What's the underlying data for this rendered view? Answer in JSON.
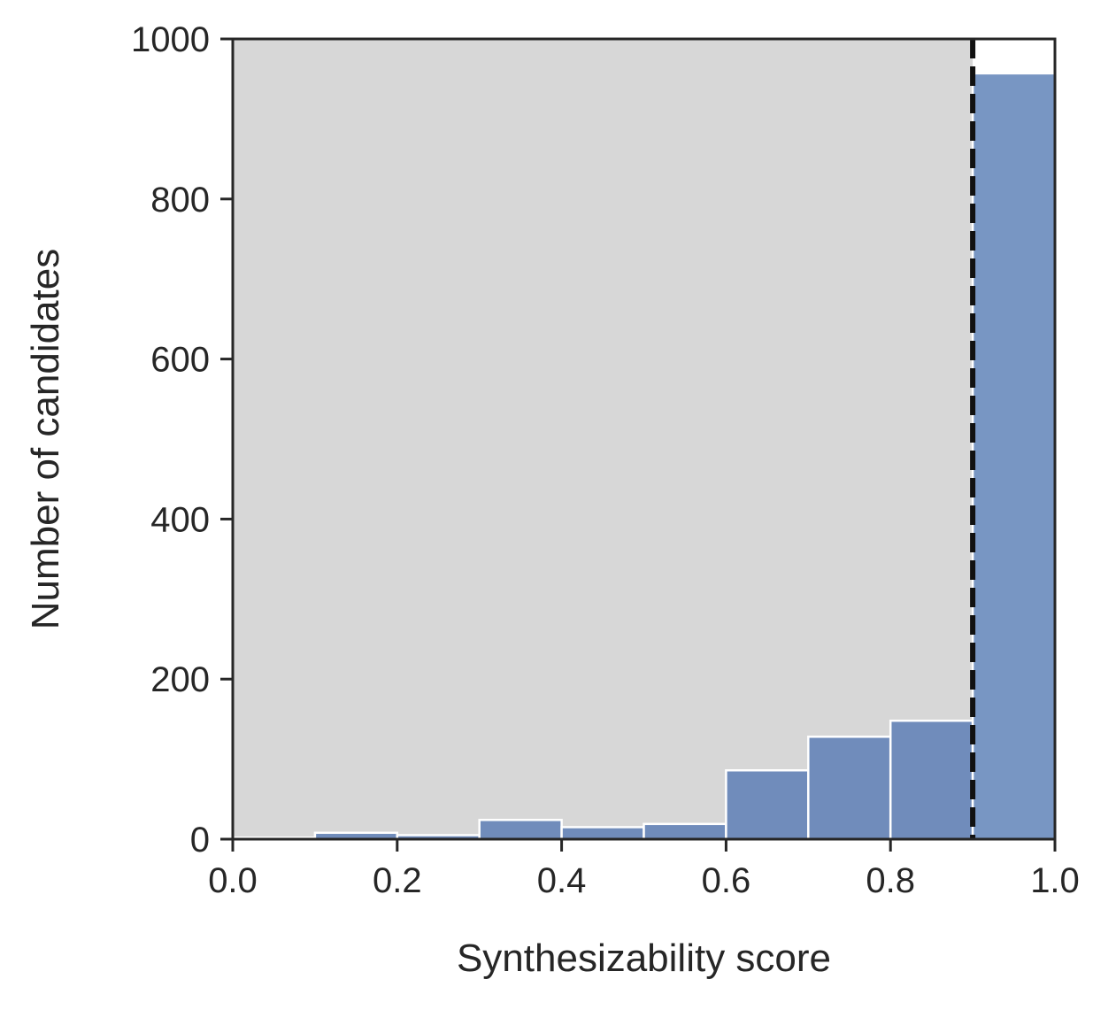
{
  "chart_data": {
    "type": "bar",
    "title": "",
    "xlabel": "Synthesizability score",
    "ylabel": "Number of candidates",
    "xlim": [
      0.0,
      1.0
    ],
    "ylim": [
      0,
      1000
    ],
    "x_ticks": [
      "0.0",
      "0.2",
      "0.4",
      "0.6",
      "0.8",
      "1.0"
    ],
    "y_ticks": [
      "0",
      "200",
      "400",
      "600",
      "800",
      "1000"
    ],
    "bins": [
      [
        0.0,
        0.1
      ],
      [
        0.1,
        0.2
      ],
      [
        0.2,
        0.3
      ],
      [
        0.3,
        0.4
      ],
      [
        0.4,
        0.5
      ],
      [
        0.5,
        0.6
      ],
      [
        0.6,
        0.7
      ],
      [
        0.7,
        0.8
      ],
      [
        0.8,
        0.9
      ],
      [
        0.9,
        1.0
      ]
    ],
    "values": [
      2,
      8,
      5,
      24,
      15,
      19,
      86,
      128,
      148,
      957
    ],
    "threshold": 0.9,
    "shaded_region": [
      0.0,
      0.9
    ],
    "grid": false,
    "legend": "none",
    "colors": {
      "bar": "#7896c3",
      "shaded_bar": "#708cbb",
      "bar_edge": "#ffffff",
      "shade": "#d7d7d7",
      "threshold_line": "#111111",
      "axis": "#262626"
    }
  }
}
